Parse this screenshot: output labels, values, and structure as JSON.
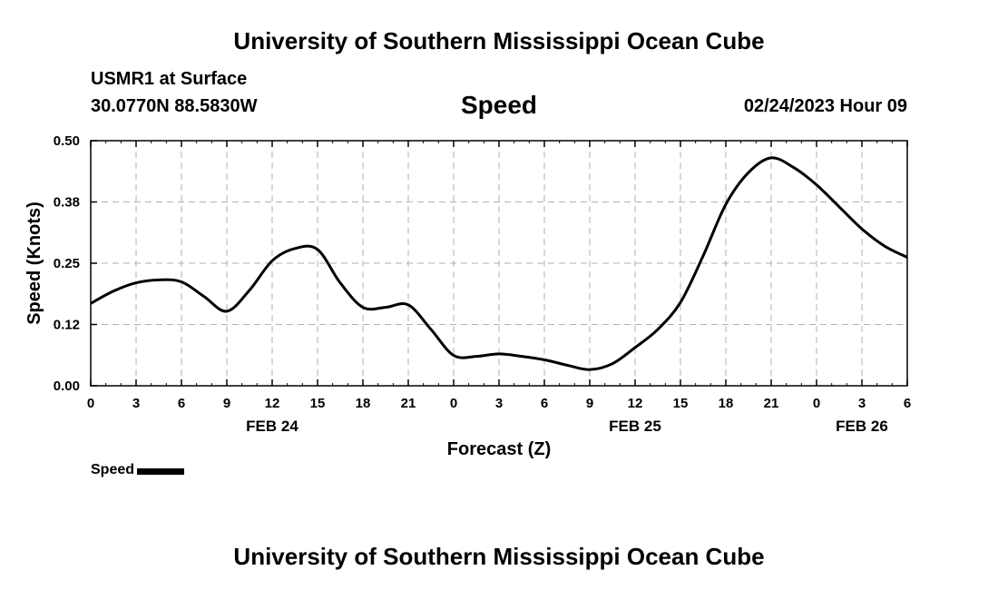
{
  "header": {
    "title": "University of Southern Mississippi Ocean Cube",
    "station": "USMR1 at Surface",
    "coords": "30.0770N  88.5830W",
    "chart_title": "Speed",
    "datetime": "02/24/2023 Hour 09"
  },
  "footer": {
    "title": "University of Southern Mississippi Ocean Cube"
  },
  "legend": {
    "label": "Speed"
  },
  "colors": {
    "line": "#000000",
    "grid": "#b0b0b0",
    "background": "#ffffff"
  },
  "chart_data": {
    "type": "line",
    "xlabel": "Forecast (Z)",
    "ylabel": "Speed (Knots)",
    "ylim": [
      0,
      0.5
    ],
    "xlim": [
      0,
      54
    ],
    "grid": true,
    "legend_position": "bottom-left",
    "y_ticks": [
      {
        "value": 0.0,
        "label": "0.00"
      },
      {
        "value": 0.125,
        "label": "0.12"
      },
      {
        "value": 0.25,
        "label": "0.25"
      },
      {
        "value": 0.375,
        "label": "0.38"
      },
      {
        "value": 0.5,
        "label": "0.50"
      }
    ],
    "x_ticks": [
      {
        "value": 0,
        "label": "0"
      },
      {
        "value": 3,
        "label": "3"
      },
      {
        "value": 6,
        "label": "6"
      },
      {
        "value": 9,
        "label": "9"
      },
      {
        "value": 12,
        "label": "12"
      },
      {
        "value": 15,
        "label": "15"
      },
      {
        "value": 18,
        "label": "18"
      },
      {
        "value": 21,
        "label": "21"
      },
      {
        "value": 24,
        "label": "0"
      },
      {
        "value": 27,
        "label": "3"
      },
      {
        "value": 30,
        "label": "6"
      },
      {
        "value": 33,
        "label": "9"
      },
      {
        "value": 36,
        "label": "12"
      },
      {
        "value": 39,
        "label": "15"
      },
      {
        "value": 42,
        "label": "18"
      },
      {
        "value": 45,
        "label": "21"
      },
      {
        "value": 48,
        "label": "0"
      },
      {
        "value": 51,
        "label": "3"
      },
      {
        "value": 54,
        "label": "6"
      }
    ],
    "date_labels": [
      {
        "value": 12,
        "label": "FEB 24"
      },
      {
        "value": 36,
        "label": "FEB 25"
      },
      {
        "value": 51,
        "label": "FEB 26"
      }
    ],
    "series": [
      {
        "name": "Speed",
        "x": [
          0,
          1.5,
          3,
          4.5,
          6,
          7.5,
          9,
          10.5,
          12,
          13.5,
          15,
          16.5,
          18,
          19.5,
          21,
          22.5,
          24,
          25.5,
          27,
          28.5,
          30,
          31.5,
          33,
          34.5,
          36,
          37.5,
          39,
          40.5,
          42,
          43.5,
          45,
          46.5,
          48,
          49.5,
          51,
          52.5,
          54
        ],
        "values": [
          0.168,
          0.193,
          0.21,
          0.216,
          0.212,
          0.182,
          0.152,
          0.195,
          0.255,
          0.28,
          0.278,
          0.21,
          0.16,
          0.16,
          0.165,
          0.115,
          0.062,
          0.06,
          0.065,
          0.06,
          0.053,
          0.042,
          0.033,
          0.045,
          0.078,
          0.115,
          0.17,
          0.265,
          0.37,
          0.435,
          0.465,
          0.445,
          0.41,
          0.365,
          0.32,
          0.285,
          0.262
        ]
      }
    ]
  }
}
